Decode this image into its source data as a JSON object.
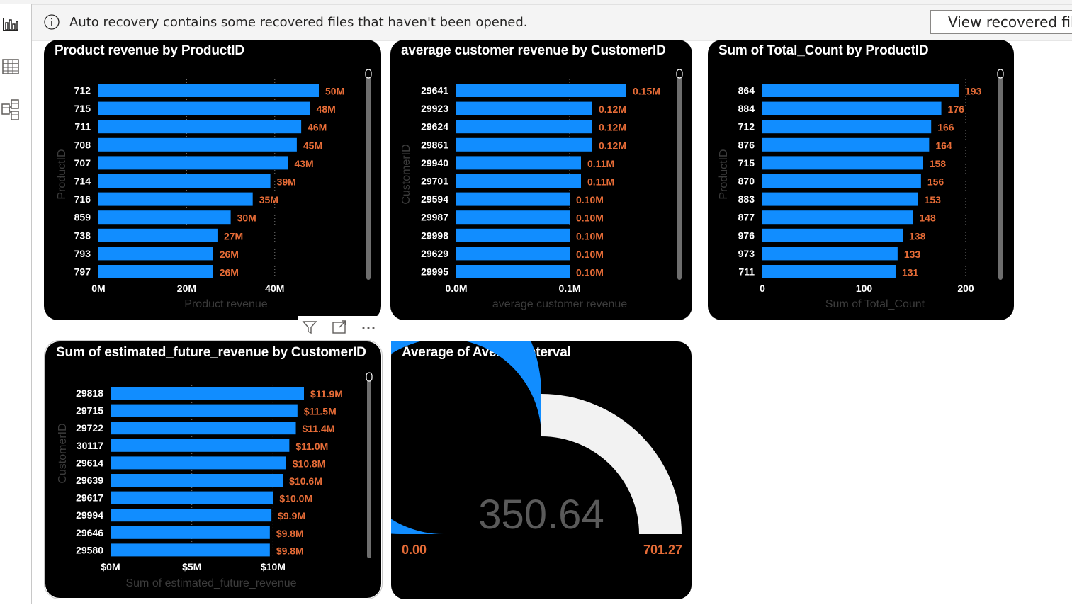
{
  "banner": {
    "message": "Auto recovery contains some recovered files that haven't been opened.",
    "button_label": "View recovered files"
  },
  "nav": {
    "icons": [
      "report-view-icon",
      "table-view-icon",
      "model-view-icon"
    ]
  },
  "colors": {
    "bar": "#118DFF",
    "label": "#E66C37",
    "gauge_empty": "#F2F2F2",
    "card_bg": "#000000"
  },
  "visual_header": {
    "icons": [
      "filter-icon",
      "focus-mode-icon",
      "more-options-icon"
    ]
  },
  "cards": {
    "product_revenue": {
      "title": "Product revenue by ProductID"
    },
    "avg_customer_revenue": {
      "title": "average customer revenue by CustomerID"
    },
    "total_count": {
      "title": "Sum of Total_Count by ProductID"
    },
    "future_revenue": {
      "title": "Sum of estimated_future_revenue by CustomerID"
    },
    "average_interval": {
      "title": "Average of AverageInterval"
    }
  },
  "chart_data": [
    {
      "id": "product_revenue",
      "type": "bar",
      "orientation": "horizontal",
      "title": "Product revenue by ProductID",
      "xlabel": "Product revenue",
      "ylabel": "ProductID",
      "categories": [
        "712",
        "715",
        "711",
        "708",
        "707",
        "714",
        "716",
        "859",
        "738",
        "793",
        "797"
      ],
      "values": [
        50000000,
        48000000,
        46000000,
        45000000,
        43000000,
        39000000,
        35000000,
        30000000,
        27000000,
        26000000,
        26000000
      ],
      "labels": [
        "50M",
        "48M",
        "46M",
        "45M",
        "43M",
        "39M",
        "35M",
        "30M",
        "27M",
        "26M",
        "26M"
      ],
      "xlim": [
        0,
        50000000
      ],
      "xticks": [
        0,
        20000000,
        40000000
      ],
      "xtick_labels": [
        "0M",
        "20M",
        "40M"
      ],
      "grid": "vertical-dotted",
      "scrollbar": true
    },
    {
      "id": "avg_customer_revenue",
      "type": "bar",
      "orientation": "horizontal",
      "title": "average customer revenue by CustomerID",
      "xlabel": "average customer revenue",
      "ylabel": "CustomerID",
      "categories": [
        "29641",
        "29923",
        "29624",
        "29861",
        "29940",
        "29701",
        "29594",
        "29987",
        "29998",
        "29629",
        "29995"
      ],
      "values": [
        0.15,
        0.12,
        0.12,
        0.12,
        0.11,
        0.11,
        0.1,
        0.1,
        0.1,
        0.1,
        0.1
      ],
      "labels": [
        "0.15M",
        "0.12M",
        "0.12M",
        "0.12M",
        "0.11M",
        "0.11M",
        "0.10M",
        "0.10M",
        "0.10M",
        "0.10M",
        "0.10M"
      ],
      "xlim": [
        0,
        0.15
      ],
      "xticks": [
        0,
        0.1
      ],
      "xtick_labels": [
        "0.0M",
        "0.1M"
      ],
      "grid": "vertical-dotted",
      "scrollbar": true
    },
    {
      "id": "total_count",
      "type": "bar",
      "orientation": "horizontal",
      "title": "Sum of Total_Count by ProductID",
      "xlabel": "Sum of Total_Count",
      "ylabel": "ProductID",
      "categories": [
        "864",
        "884",
        "712",
        "876",
        "715",
        "870",
        "883",
        "877",
        "976",
        "973",
        "711"
      ],
      "values": [
        193,
        176,
        166,
        164,
        158,
        156,
        153,
        148,
        138,
        133,
        131
      ],
      "labels": [
        "193",
        "176",
        "166",
        "164",
        "158",
        "156",
        "153",
        "148",
        "138",
        "133",
        "131"
      ],
      "xlim": [
        0,
        200
      ],
      "xticks": [
        0,
        100,
        200
      ],
      "xtick_labels": [
        "0",
        "100",
        "200"
      ],
      "grid": "vertical-dotted",
      "scrollbar": true
    },
    {
      "id": "future_revenue",
      "type": "bar",
      "orientation": "horizontal",
      "title": "Sum of estimated_future_revenue by CustomerID",
      "xlabel": "Sum of estimated_future_revenue",
      "ylabel": "CustomerID",
      "categories": [
        "29818",
        "29715",
        "29722",
        "30117",
        "29614",
        "29639",
        "29617",
        "29994",
        "29646",
        "29580"
      ],
      "values": [
        11900000,
        11500000,
        11400000,
        11000000,
        10800000,
        10600000,
        10000000,
        9900000,
        9800000,
        9800000
      ],
      "labels": [
        "$11.9M",
        "$11.5M",
        "$11.4M",
        "$11.0M",
        "$10.8M",
        "$10.6M",
        "$10.0M",
        "$9.9M",
        "$9.8M",
        "$9.8M"
      ],
      "xlim": [
        0,
        11900000
      ],
      "xticks": [
        0,
        5000000,
        10000000
      ],
      "xtick_labels": [
        "$0M",
        "$5M",
        "$10M"
      ],
      "grid": "vertical-dotted",
      "scrollbar": true
    },
    {
      "id": "average_interval",
      "type": "gauge",
      "title": "Average of AverageInterval",
      "value": 350.64,
      "value_label": "350.64",
      "min": 0,
      "max": 701.27,
      "min_label": "0.00",
      "max_label": "701.27"
    }
  ]
}
